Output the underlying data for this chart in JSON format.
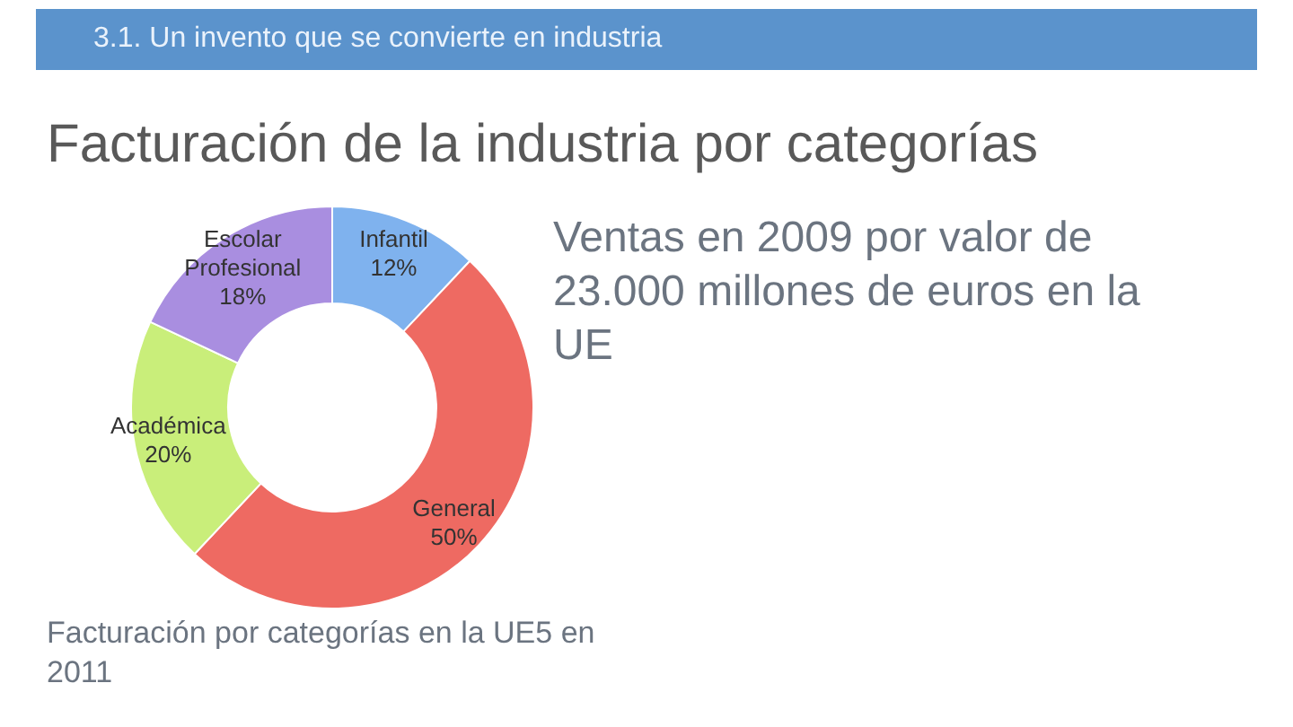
{
  "chart_data": {
    "type": "donut",
    "subtitle": "3.1. Un invento que se convierte en industria",
    "title": "Facturación de la industria por categorías",
    "categories": [
      "Infantil",
      "General",
      "Académica",
      "Escolar Profesional"
    ],
    "values": [
      12,
      50,
      20,
      18
    ],
    "colors": [
      "#7fb2ee",
      "#ee6a62",
      "#c9ee7a",
      "#a98ee0"
    ],
    "value_labels": [
      "12%",
      "50%",
      "20%",
      "18%"
    ],
    "annotations": [
      "Ventas en 2009 por valor de 23.000 millones de euros en la UE",
      "Facturación por categorías en la UE5 en 2011"
    ]
  }
}
